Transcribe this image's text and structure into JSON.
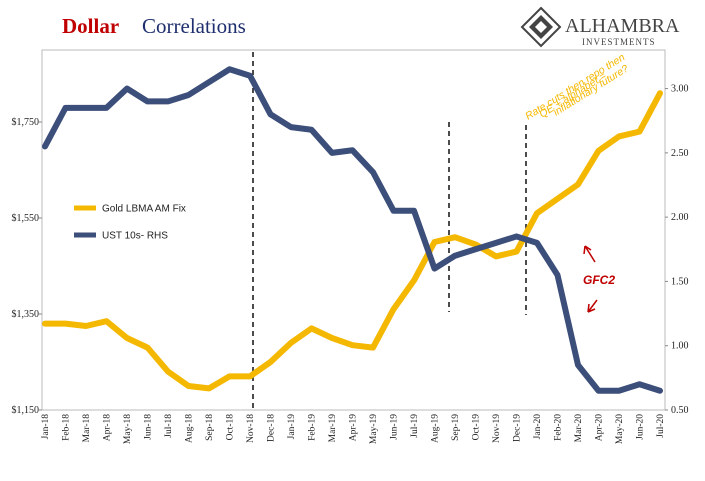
{
  "chart_data": {
    "type": "line",
    "title_parts": [
      "Dollar",
      "Correlations"
    ],
    "logo": [
      "ALHAMBRA",
      "INVESTMENTS"
    ],
    "categories": [
      "Jan-18",
      "Feb-18",
      "Mar-18",
      "Apr-18",
      "May-18",
      "Jun-18",
      "Jul-18",
      "Aug-18",
      "Sep-18",
      "Oct-18",
      "Nov-18",
      "Dec-18",
      "Jan-19",
      "Feb-19",
      "Mar-19",
      "Apr-19",
      "May-19",
      "Jun-19",
      "Jul-19",
      "Aug-19",
      "Sep-19",
      "Oct-19",
      "Nov-19",
      "Dec-19",
      "Jan-20",
      "Feb-20",
      "Mar-20",
      "Apr-20",
      "May-20",
      "Jun-20",
      "Jul-20"
    ],
    "series": [
      {
        "name": "Gold LBMA AM Fix",
        "color": "#f5b800",
        "values": [
          1330,
          1330,
          1325,
          1335,
          1300,
          1280,
          1230,
          1200,
          1195,
          1220,
          1220,
          1250,
          1290,
          1320,
          1300,
          1285,
          1280,
          1360,
          1420,
          1500,
          1510,
          1495,
          1470,
          1480,
          1560,
          1590,
          1620,
          1690,
          1720,
          1730,
          1810
        ]
      },
      {
        "name": "UST 10s- RHS",
        "color": "#3c4e7a",
        "axis": "y2",
        "values": [
          2.55,
          2.85,
          2.85,
          2.85,
          3.0,
          2.9,
          2.9,
          2.95,
          3.05,
          3.15,
          3.1,
          2.8,
          2.7,
          2.68,
          2.5,
          2.52,
          2.35,
          2.05,
          2.05,
          1.6,
          1.7,
          1.75,
          1.8,
          1.85,
          1.8,
          1.55,
          0.85,
          0.65,
          0.65,
          0.7,
          0.65
        ]
      }
    ],
    "ylim": [
      1150,
      1900
    ],
    "yticks": [
      {
        "value": 1150,
        "label": "$1,150"
      },
      {
        "value": 1350,
        "label": "$1,350"
      },
      {
        "value": 1550,
        "label": "$1,550"
      },
      {
        "value": 1750,
        "label": "$1,750"
      }
    ],
    "y2lim": [
      0.5,
      3.3
    ],
    "y2ticks": [
      {
        "value": 0.5,
        "label": "0.50"
      },
      {
        "value": 1,
        "label": "1.00"
      },
      {
        "value": 1.5,
        "label": "1.50"
      },
      {
        "value": 2,
        "label": "2.00"
      },
      {
        "value": 2.5,
        "label": "2.50"
      },
      {
        "value": 3,
        "label": "3.00"
      }
    ],
    "annotations": [
      {
        "lines": [
          "Rate cuts then repo then",
          "QE + alphabet =",
          "inflationary future?"
        ],
        "color": "#f5b800"
      },
      {
        "lines": [
          "GFC2"
        ],
        "color": "#c00000"
      }
    ]
  }
}
